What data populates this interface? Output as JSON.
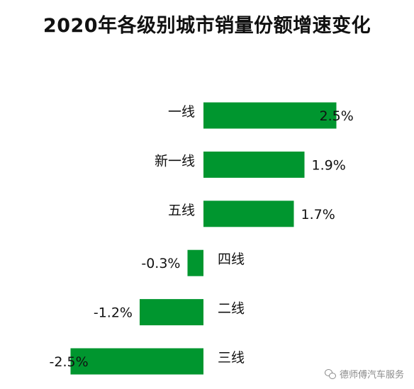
{
  "title": "2020年各级别城市销量份额增速变化",
  "watermark": "德师傅汽车服务",
  "colors": {
    "bar": "#00962f",
    "text": "#111111"
  },
  "chart_data": {
    "type": "bar",
    "orientation": "horizontal",
    "title": "2020年各级别城市销量份额增速变化",
    "categories": [
      "一线",
      "新一线",
      "五线",
      "四线",
      "二线",
      "三线"
    ],
    "values": [
      2.5,
      1.9,
      1.7,
      -0.3,
      -1.2,
      -2.5
    ],
    "value_labels": [
      "2.5%",
      "1.9%",
      "1.7%",
      "-0.3%",
      "-1.2%",
      "-2.5%"
    ],
    "unit": "%",
    "xlim": [
      -2.5,
      2.5
    ],
    "grid": false,
    "legend": "none"
  }
}
